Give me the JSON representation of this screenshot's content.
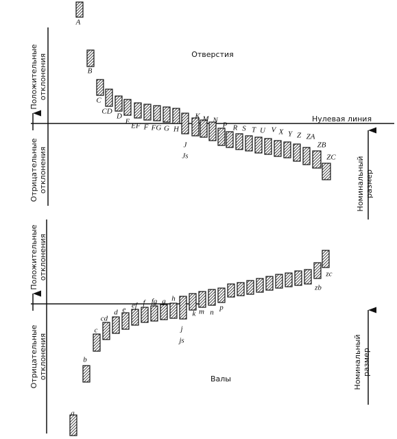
{
  "holes_title": "Отверстия",
  "shafts_title": "Валы",
  "zero_line": "Нулевая линия",
  "upper_axis": {
    "positive": [
      "Положительные",
      "отклонения"
    ],
    "negative": [
      "Отрицательные",
      "отклонения"
    ],
    "nominal": [
      "Номинальный",
      "размер"
    ]
  },
  "lower_axis": {
    "positive": [
      "Положительные",
      "отклонения"
    ],
    "negative": [
      "Отрицательные",
      "отклонения"
    ],
    "nominal": [
      "Номинальный",
      "размер"
    ]
  },
  "holes": [
    "A",
    "B",
    "C",
    "CD",
    "D",
    "E",
    "EF",
    "F",
    "FG",
    "G",
    "H",
    "J",
    "Js",
    "K",
    "M",
    "N",
    "P",
    "R",
    "S",
    "T",
    "U",
    "V",
    "X",
    "Y",
    "Z",
    "ZA",
    "ZB",
    "ZC"
  ],
  "shafts": [
    "a",
    "b",
    "c",
    "cd",
    "d",
    "e",
    "ef",
    "f",
    "fg",
    "g",
    "h",
    "j",
    "js",
    "k",
    "m",
    "n",
    "p",
    "zb",
    "zc"
  ]
}
